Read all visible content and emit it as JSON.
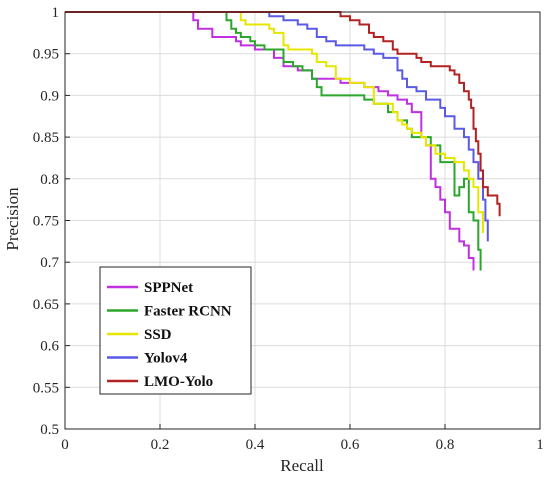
{
  "chart_data": {
    "type": "line",
    "xlabel": "Recall",
    "ylabel": "Precision",
    "xlim": [
      0,
      1
    ],
    "ylim": [
      0.5,
      1
    ],
    "xticks": [
      0,
      0.2,
      0.4,
      0.6,
      0.8,
      1
    ],
    "xtick_labels": [
      "0",
      "0.2",
      "0.4",
      "0.6",
      "0.8",
      "1"
    ],
    "yticks": [
      0.5,
      0.55,
      0.6,
      0.65,
      0.7,
      0.75,
      0.8,
      0.85,
      0.9,
      0.95,
      1
    ],
    "ytick_labels": [
      "0.5",
      "0.55",
      "0.6",
      "0.65",
      "0.7",
      "0.75",
      "0.8",
      "0.85",
      "0.9",
      "0.95",
      "1"
    ],
    "grid": true,
    "legend_position": "lower-left",
    "series": [
      {
        "name": "SPPNet",
        "color": "#c030e0",
        "x": [
          0,
          0.22,
          0.27,
          0.28,
          0.31,
          0.34,
          0.36,
          0.37,
          0.4,
          0.42,
          0.44,
          0.46,
          0.49,
          0.52,
          0.56,
          0.58,
          0.63,
          0.66,
          0.68,
          0.7,
          0.72,
          0.73,
          0.75,
          0.76,
          0.77,
          0.78,
          0.79,
          0.8,
          0.81,
          0.83,
          0.84,
          0.85,
          0.86
        ],
        "y": [
          1,
          1,
          0.99,
          0.98,
          0.97,
          0.97,
          0.965,
          0.96,
          0.955,
          0.955,
          0.945,
          0.935,
          0.93,
          0.92,
          0.92,
          0.915,
          0.91,
          0.905,
          0.9,
          0.895,
          0.89,
          0.88,
          0.85,
          0.84,
          0.8,
          0.79,
          0.775,
          0.76,
          0.74,
          0.725,
          0.72,
          0.705,
          0.69
        ]
      },
      {
        "name": "Faster RCNN",
        "color": "#2aa72a",
        "x": [
          0,
          0.33,
          0.34,
          0.35,
          0.36,
          0.37,
          0.39,
          0.4,
          0.42,
          0.46,
          0.48,
          0.5,
          0.52,
          0.53,
          0.54,
          0.58,
          0.6,
          0.63,
          0.65,
          0.68,
          0.7,
          0.72,
          0.73,
          0.75,
          0.77,
          0.79,
          0.82,
          0.83,
          0.84,
          0.85,
          0.86,
          0.87,
          0.875
        ],
        "y": [
          1,
          1,
          0.99,
          0.98,
          0.975,
          0.97,
          0.965,
          0.96,
          0.955,
          0.94,
          0.935,
          0.93,
          0.92,
          0.91,
          0.9,
          0.9,
          0.9,
          0.895,
          0.89,
          0.88,
          0.87,
          0.86,
          0.85,
          0.85,
          0.84,
          0.82,
          0.78,
          0.79,
          0.8,
          0.76,
          0.75,
          0.715,
          0.69
        ]
      },
      {
        "name": "SSD",
        "color": "#e6e600",
        "x": [
          0,
          0.36,
          0.37,
          0.38,
          0.43,
          0.44,
          0.46,
          0.47,
          0.52,
          0.53,
          0.55,
          0.57,
          0.6,
          0.63,
          0.65,
          0.69,
          0.7,
          0.71,
          0.72,
          0.73,
          0.75,
          0.76,
          0.78,
          0.8,
          0.82,
          0.84,
          0.85,
          0.86,
          0.87,
          0.88
        ],
        "y": [
          1,
          1,
          0.99,
          0.985,
          0.98,
          0.975,
          0.96,
          0.955,
          0.95,
          0.94,
          0.935,
          0.92,
          0.915,
          0.91,
          0.89,
          0.88,
          0.87,
          0.865,
          0.86,
          0.855,
          0.85,
          0.84,
          0.83,
          0.825,
          0.82,
          0.81,
          0.8,
          0.79,
          0.76,
          0.735
        ]
      },
      {
        "name": "Yolov4",
        "color": "#5a5ae6",
        "x": [
          0,
          0.4,
          0.43,
          0.46,
          0.49,
          0.51,
          0.53,
          0.55,
          0.57,
          0.6,
          0.63,
          0.65,
          0.67,
          0.7,
          0.71,
          0.72,
          0.74,
          0.76,
          0.79,
          0.8,
          0.82,
          0.84,
          0.85,
          0.86,
          0.87,
          0.88,
          0.885,
          0.89
        ],
        "y": [
          1,
          1,
          0.995,
          0.99,
          0.985,
          0.98,
          0.97,
          0.965,
          0.96,
          0.96,
          0.955,
          0.95,
          0.945,
          0.93,
          0.92,
          0.91,
          0.905,
          0.895,
          0.885,
          0.875,
          0.86,
          0.85,
          0.835,
          0.82,
          0.8,
          0.775,
          0.75,
          0.725
        ]
      },
      {
        "name": "LMO-Yolo",
        "color": "#b22222",
        "x": [
          0,
          0.55,
          0.58,
          0.6,
          0.62,
          0.64,
          0.65,
          0.67,
          0.69,
          0.7,
          0.72,
          0.74,
          0.75,
          0.77,
          0.78,
          0.8,
          0.81,
          0.82,
          0.83,
          0.84,
          0.85,
          0.855,
          0.86,
          0.865,
          0.87,
          0.875,
          0.88,
          0.89,
          0.9,
          0.91,
          0.915
        ],
        "y": [
          1,
          1,
          0.995,
          0.99,
          0.985,
          0.975,
          0.97,
          0.965,
          0.955,
          0.95,
          0.95,
          0.945,
          0.94,
          0.935,
          0.935,
          0.935,
          0.93,
          0.925,
          0.915,
          0.905,
          0.895,
          0.885,
          0.86,
          0.845,
          0.83,
          0.81,
          0.79,
          0.78,
          0.78,
          0.77,
          0.755
        ]
      }
    ]
  }
}
